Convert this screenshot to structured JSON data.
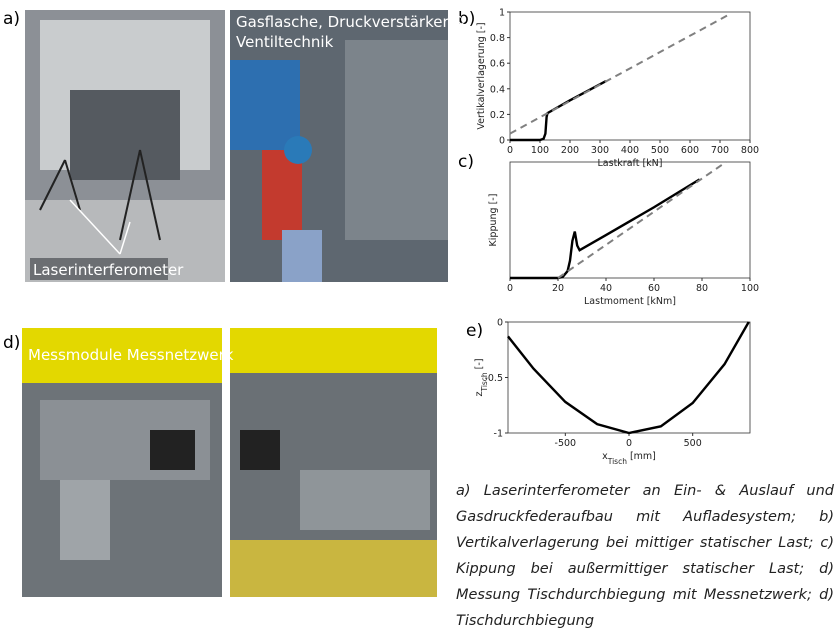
{
  "panels": [
    "a)",
    "b)",
    "c)",
    "d)",
    "e)"
  ],
  "photo_labels": [
    "Gasflasche, Druckverstärker &",
    "Ventiltechnik",
    "Laserinterferometer",
    "Messmodule Messnetzwerk"
  ],
  "caption": "a) Laserinterferometer an Ein- & Auslauf und Gasdruckfederaufbau mit Aufladesystem; b) Vertikalverlagerung bei mittiger statischer Last; c) Kippung bei außermittiger statischer Last; d) Messung Tischdurchbiegung mit Messnetzwerk; d) Tischdurchbiegung",
  "chart_data": [
    {
      "type": "line",
      "xlabel": [
        "Lastkraft [kN]"
      ],
      "ylabel": [
        "Vertikalverlagerung [-]"
      ],
      "xlim": [
        0,
        800
      ],
      "ylim": [
        0,
        1
      ],
      "xticks": [
        0,
        100,
        200,
        300,
        400,
        500,
        600,
        700,
        800
      ],
      "yticks": [
        0,
        0.2,
        0.4,
        0.6,
        0.8,
        1
      ],
      "series": [
        {
          "color": "#000000",
          "style": "solid",
          "x": [
            0,
            100,
            112,
            118,
            122,
            125,
            200,
            320
          ],
          "values": [
            0,
            0,
            0.01,
            0.05,
            0.18,
            0.21,
            0.31,
            0.46
          ]
        },
        {
          "color": "#808080",
          "style": "dashed",
          "x": [
            0,
            730
          ],
          "values": [
            0.05,
            0.98
          ]
        }
      ]
    },
    {
      "type": "line",
      "xlabel": [
        "Lastmoment [kNm]"
      ],
      "ylabel": [
        "Kippung [-]"
      ],
      "xlim": [
        0,
        100
      ],
      "ylim": [
        0,
        1
      ],
      "xticks": [
        0,
        20,
        40,
        60,
        80,
        100
      ],
      "yticks": [],
      "series": [
        {
          "color": "#000000",
          "style": "solid",
          "x": [
            0,
            20,
            22,
            24,
            25,
            26,
            27,
            28,
            29,
            40,
            60,
            79
          ],
          "values": [
            0,
            0,
            0.01,
            0.06,
            0.15,
            0.32,
            0.4,
            0.28,
            0.24,
            0.37,
            0.61,
            0.85
          ]
        },
        {
          "color": "#808080",
          "style": "dashed",
          "x": [
            20,
            90
          ],
          "values": [
            0,
            1
          ]
        }
      ]
    },
    {
      "type": "line",
      "xlabel": [
        "x",
        "Tisch",
        "[mm]"
      ],
      "ylabel": [
        "z",
        "Tisch",
        "[-]"
      ],
      "xlim": [
        -950,
        950
      ],
      "ylim": [
        -1,
        0
      ],
      "xticks": [
        -500,
        0,
        500
      ],
      "yticks": [
        -1,
        -0.5,
        0
      ],
      "series": [
        {
          "color": "#000000",
          "style": "solid",
          "x": [
            -950,
            -750,
            -500,
            -250,
            0,
            250,
            500,
            750,
            940
          ],
          "values": [
            -0.13,
            -0.42,
            -0.72,
            -0.92,
            -1,
            -0.94,
            -0.73,
            -0.38,
            0
          ]
        }
      ]
    }
  ]
}
